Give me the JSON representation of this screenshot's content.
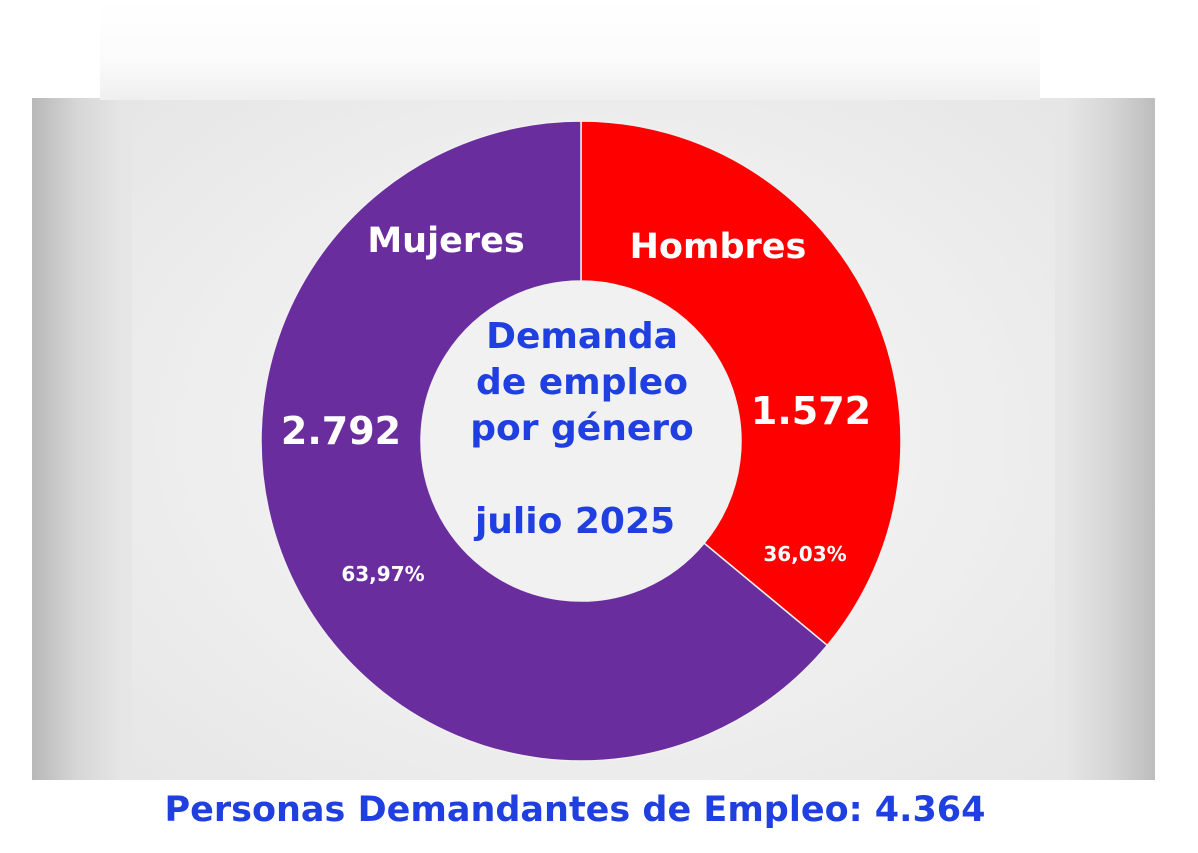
{
  "chart_data": {
    "type": "pie",
    "categories": [
      "Mujeres",
      "Hombres"
    ],
    "values": [
      2792,
      1572
    ],
    "value_labels": [
      "2.792",
      "1.572"
    ],
    "percent_labels": [
      "63,97%",
      "36,03%"
    ],
    "colors": [
      "#6a2d9e",
      "#ff0000"
    ],
    "center_text": [
      "Demanda",
      "de empleo",
      "por género",
      "",
      "julio 2025"
    ],
    "footer": "Personas Demandantes de Empleo: 4.364"
  }
}
